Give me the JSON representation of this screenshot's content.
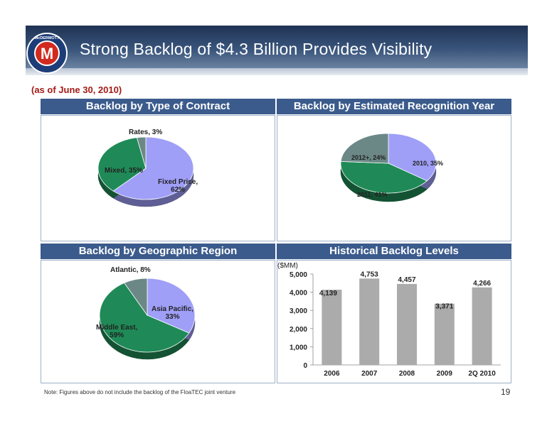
{
  "header": {
    "title": "Strong Backlog of $4.3 Billion Provides Visibility",
    "logo_text": "McDERMOTT",
    "logo_letter": "M"
  },
  "subtitle": "(as of June 30, 2010)",
  "panels": {
    "contract_title": "Backlog by Type of Contract",
    "recognition_title": "Backlog by Estimated Recognition Year",
    "region_title": "Backlog by Geographic Region",
    "historical_title": "Historical Backlog Levels"
  },
  "pie_labels": {
    "contract_rates": "Rates, 3%",
    "contract_mixed": "Mixed, 35%",
    "contract_fixed_1": "Fixed Price,",
    "contract_fixed_2": "62%",
    "year_2012": "2012+, 24%",
    "year_2010": "2010, 35%",
    "year_2011": "2011, 41%",
    "region_atlantic": "Atlantic, 8%",
    "region_asia_1": "Asia Pacific,",
    "region_asia_2": "33%",
    "region_me_1": "Middle East,",
    "region_me_2": "59%"
  },
  "footer": {
    "note": "Note: Figures above do not include the backlog of the FloaTEC joint venture",
    "page_number": "19"
  },
  "colors": {
    "lavender": "#9f9ff8",
    "green": "#1f8a57",
    "gray": "#6b8887",
    "bar": "#ababab",
    "header_blue": "#3b5b8c"
  },
  "chart_data": [
    {
      "type": "pie",
      "title": "Backlog by Type of Contract",
      "slices": [
        {
          "label": "Fixed Price",
          "value": 62
        },
        {
          "label": "Mixed",
          "value": 35
        },
        {
          "label": "Rates",
          "value": 3
        }
      ]
    },
    {
      "type": "pie",
      "title": "Backlog by Estimated Recognition Year",
      "slices": [
        {
          "label": "2010",
          "value": 35
        },
        {
          "label": "2011",
          "value": 41
        },
        {
          "label": "2012+",
          "value": 24
        }
      ]
    },
    {
      "type": "pie",
      "title": "Backlog by Geographic Region",
      "slices": [
        {
          "label": "Asia Pacific",
          "value": 33
        },
        {
          "label": "Middle East",
          "value": 59
        },
        {
          "label": "Atlantic",
          "value": 8
        }
      ]
    },
    {
      "type": "bar",
      "title": "Historical Backlog Levels",
      "unit_label": "($MM)",
      "categories": [
        "2006",
        "2007",
        "2008",
        "2009",
        "2Q 2010"
      ],
      "values": [
        4139,
        4753,
        4457,
        3371,
        4266
      ],
      "value_labels": [
        "4,139",
        "4,753",
        "4,457",
        "3,371",
        "4,266"
      ],
      "ylim": [
        0,
        5000
      ],
      "yticks": [
        "0",
        "1,000",
        "2,000",
        "3,000",
        "4,000",
        "5,000"
      ],
      "grid": false
    }
  ]
}
